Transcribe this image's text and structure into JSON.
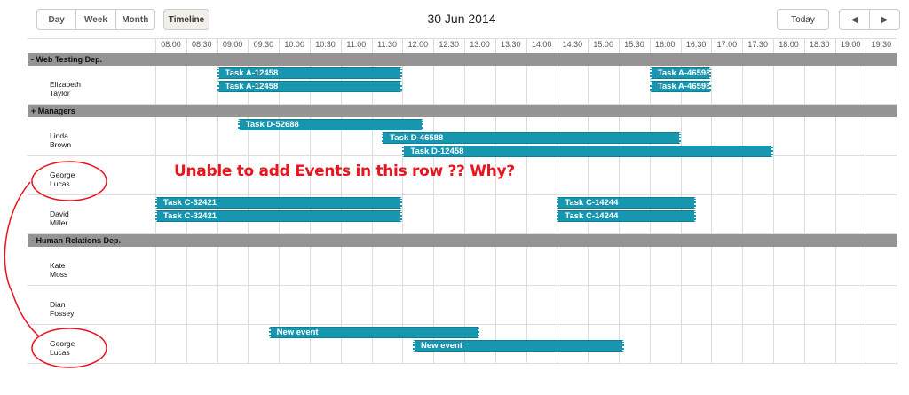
{
  "toolbar": {
    "tabs": [
      "Day",
      "Week",
      "Month"
    ],
    "timeline": "Timeline",
    "date": "30 Jun 2014",
    "today": "Today",
    "prev": "◀",
    "next": "▶"
  },
  "times": [
    "08:00",
    "08:30",
    "09:00",
    "09:30",
    "10:00",
    "10:30",
    "11:00",
    "11:30",
    "12:00",
    "12:30",
    "13:00",
    "13:30",
    "14:00",
    "14:30",
    "15:00",
    "15:30",
    "16:00",
    "16:30",
    "17:00",
    "17:30",
    "18:00",
    "18:30",
    "19:00",
    "19:30"
  ],
  "rows": [
    {
      "type": "group",
      "label": "-  Web Testing Dep."
    },
    {
      "type": "person",
      "label": "Elizabeth Taylor",
      "events": [
        {
          "text": "Task A-12458",
          "start": "09:00",
          "end": "12:00"
        },
        {
          "text": "Task A-12458",
          "start": "09:00",
          "end": "12:00"
        },
        {
          "text": "Task A-46598",
          "start": "16:00",
          "end": "17:00",
          "lane": 0
        },
        {
          "text": "Task A-46598",
          "start": "16:00",
          "end": "17:00",
          "lane": 1
        }
      ]
    },
    {
      "type": "group",
      "label": "   + Managers"
    },
    {
      "type": "person",
      "label": "Linda Brown",
      "events": [
        {
          "text": "Task D-52688",
          "start": "09:20",
          "end": "12:20"
        },
        {
          "text": "Task D-46588",
          "start": "11:40",
          "end": "16:30"
        },
        {
          "text": "Task D-12458",
          "start": "12:00",
          "end": "18:00"
        }
      ]
    },
    {
      "type": "person",
      "label": "George Lucas",
      "events": []
    },
    {
      "type": "person",
      "label": "David Miller",
      "events": [
        {
          "text": "Task C-32421",
          "start": "08:00",
          "end": "12:00"
        },
        {
          "text": "Task C-32421",
          "start": "08:00",
          "end": "12:00"
        },
        {
          "text": "Task C-14244",
          "start": "14:30",
          "end": "16:45",
          "lane": 0
        },
        {
          "text": "Task C-14244",
          "start": "14:30",
          "end": "16:45",
          "lane": 1
        }
      ]
    },
    {
      "type": "group",
      "label": "-  Human Relations Dep."
    },
    {
      "type": "person",
      "label": "Kate Moss",
      "events": []
    },
    {
      "type": "person",
      "label": "Dian Fossey",
      "events": []
    },
    {
      "type": "person",
      "label": "George Lucas",
      "events": [
        {
          "text": "New event",
          "start": "09:50",
          "end": "13:15"
        },
        {
          "text": "New event",
          "start": "12:10",
          "end": "15:35"
        }
      ]
    }
  ],
  "annotation": {
    "text": "Unable to add Events in this row ?? Why?",
    "color": "#e8141e"
  },
  "colors": {
    "event": "#1796b0",
    "group": "#959393"
  }
}
